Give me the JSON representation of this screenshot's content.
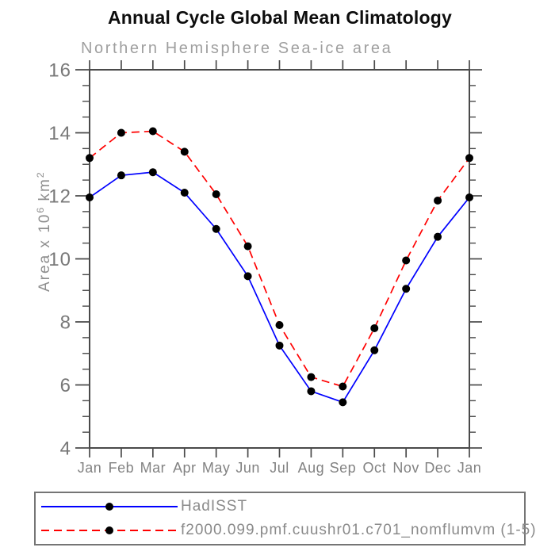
{
  "title": "Annual Cycle Global Mean Climatology",
  "subtitle": "Northern Hemisphere Sea-ice area",
  "ylabel_parts": {
    "prefix": "Area x 10",
    "exp": "6",
    "unit": " km",
    "unit_exp": "2"
  },
  "colors": {
    "hadisst_line": "#0000ff",
    "model_line": "#ff0000",
    "marker": "#000000",
    "axis": "#4a4a4a",
    "tick_label_gray": "#787878",
    "subtitle_gray": "#9f9f9f",
    "legend_text_gray": "#8a8a8a",
    "title_black": "#0d0d0d"
  },
  "legend": {
    "items": [
      {
        "id": "hadisst",
        "label": "HadISST",
        "color": "#0000ff",
        "line_style": "solid",
        "marker": "filled-circle"
      },
      {
        "id": "model",
        "label": "f2000.099.pmf.cuushr01.c701_nomflumvm (1-5)",
        "color": "#ff0000",
        "line_style": "dashed",
        "marker": "filled-circle"
      }
    ]
  },
  "chart_data": {
    "type": "line",
    "title": "Annual Cycle Global Mean Climatology",
    "subtitle": "Northern Hemisphere Sea-ice area",
    "xlabel": "",
    "ylabel": "Area x 10^6 km^2",
    "x_ticklabels": [
      "Jan",
      "Feb",
      "Mar",
      "Apr",
      "May",
      "Jun",
      "Jul",
      "Aug",
      "Sep",
      "Oct",
      "Nov",
      "Dec",
      "Jan"
    ],
    "ylim": [
      4,
      16
    ],
    "yticks": [
      4,
      6,
      8,
      10,
      12,
      14,
      16
    ],
    "minor_tick_step": 0.5,
    "grid": false,
    "legend_position": "below-plot-left",
    "series": [
      {
        "id": "hadisst",
        "name": "HadISST",
        "color": "#0000ff",
        "line_style": "solid",
        "marker": "filled-circle",
        "marker_color": "#000000",
        "values": [
          11.95,
          12.65,
          12.75,
          12.1,
          10.95,
          9.45,
          7.25,
          5.8,
          5.45,
          7.1,
          9.05,
          10.7,
          11.95
        ]
      },
      {
        "id": "model",
        "name": "f2000.099.pmf.cuushr01.c701_nomflumvm (1-5)",
        "color": "#ff0000",
        "line_style": "dashed",
        "marker": "filled-circle",
        "marker_color": "#000000",
        "values": [
          13.2,
          14.0,
          14.05,
          13.4,
          12.05,
          10.4,
          7.9,
          6.25,
          5.95,
          7.8,
          9.95,
          11.85,
          13.2
        ]
      }
    ]
  }
}
